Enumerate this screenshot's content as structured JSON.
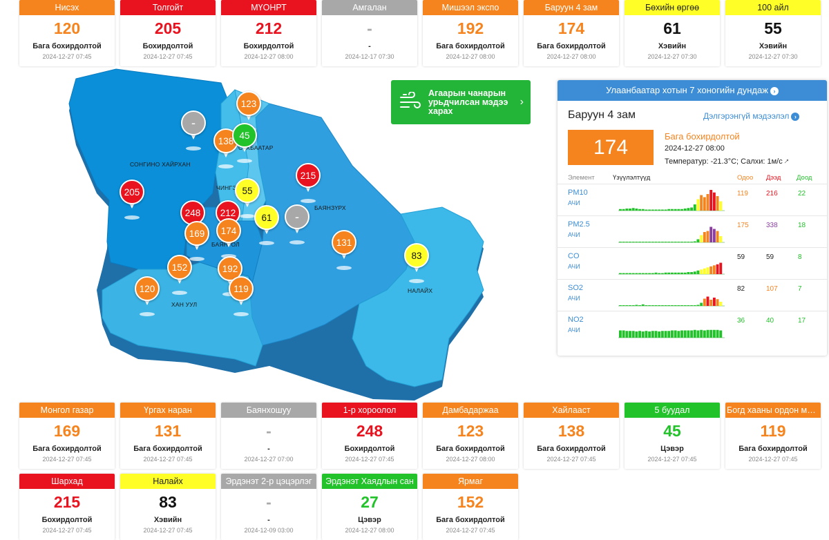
{
  "colors": {
    "green": "#22c22a",
    "yellow": "#ffff27",
    "orange": "#f5841f",
    "red": "#e8131f",
    "purple": "#8a3ea0",
    "gray": "#a8a8a8",
    "map_dark": "#0a84d6",
    "map_mid": "#2ea7e2",
    "map_light": "#3ab8e6"
  },
  "top_cards": [
    {
      "name": "Нисэх",
      "value": "120",
      "level": "Бага бохирдолтой",
      "time": "2024-12-27 07:45",
      "status": "orange"
    },
    {
      "name": "Толгойт",
      "value": "205",
      "level": "Бохирдолтой",
      "time": "2024-12-27 07:45",
      "status": "red"
    },
    {
      "name": "МҮОНРТ",
      "value": "212",
      "level": "Бохирдолтой",
      "time": "2024-12-27 08:00",
      "status": "red"
    },
    {
      "name": "Амгалан",
      "value": "-",
      "level": "-",
      "time": "2024-12-17 07:30",
      "status": "gray"
    },
    {
      "name": "Мишээл экспо",
      "value": "192",
      "level": "Бага бохирдолтой",
      "time": "2024-12-27 08:00",
      "status": "orange"
    },
    {
      "name": "Баруун 4 зам",
      "value": "174",
      "level": "Бага бохирдолтой",
      "time": "2024-12-27 08:00",
      "status": "orange"
    },
    {
      "name": "Бөхийн өргөө",
      "value": "61",
      "level": "Хэвийн",
      "time": "2024-12-27 07:30",
      "status": "yellow"
    },
    {
      "name": "100 айл",
      "value": "55",
      "level": "Хэвийн",
      "time": "2024-12-27 07:30",
      "status": "yellow"
    }
  ],
  "bottom_cards": [
    {
      "name": "Монгол газар",
      "value": "169",
      "level": "Бага бохирдолтой",
      "time": "2024-12-27 07:45",
      "status": "orange"
    },
    {
      "name": "Үргах наран",
      "value": "131",
      "level": "Бага бохирдолтой",
      "time": "2024-12-27 07:45",
      "status": "orange"
    },
    {
      "name": "Баянхошуу",
      "value": "-",
      "level": "-",
      "time": "2024-12-27 07:00",
      "status": "gray"
    },
    {
      "name": "1-р хороолол",
      "value": "248",
      "level": "Бохирдолтой",
      "time": "2024-12-27 07:45",
      "status": "red"
    },
    {
      "name": "Дамбадаржаа",
      "value": "123",
      "level": "Бага бохирдолтой",
      "time": "2024-12-27 08:00",
      "status": "orange"
    },
    {
      "name": "Хайлааст",
      "value": "138",
      "level": "Бага бохирдолтой",
      "time": "2024-12-27 07:45",
      "status": "orange"
    },
    {
      "name": "5 буудал",
      "value": "45",
      "level": "Цэвэр",
      "time": "2024-12-27 07:45",
      "status": "green"
    },
    {
      "name": "Богд хааны ордон музей",
      "value": "119",
      "level": "Бага бохирдолтой",
      "time": "2024-12-27 07:45",
      "status": "orange"
    },
    {
      "name": "Шархад",
      "value": "215",
      "level": "Бохирдолтой",
      "time": "2024-12-27 07:45",
      "status": "red"
    },
    {
      "name": "Налайх",
      "value": "83",
      "level": "Хэвийн",
      "time": "2024-12-27 07:45",
      "status": "yellow"
    },
    {
      "name": "Эрдэнэт 2-р цэцэрлэг",
      "value": "-",
      "level": "-",
      "time": "2024-12-09 03:00",
      "status": "gray"
    },
    {
      "name": "Эрдэнэт Хаядлын сан",
      "value": "27",
      "level": "Цэвэр",
      "time": "2024-12-27 08:00",
      "status": "green"
    },
    {
      "name": "Ярмаг",
      "value": "152",
      "level": "Бага бохирдолтой",
      "time": "2024-12-27 07:45",
      "status": "orange"
    }
  ],
  "map": {
    "district_labels": [
      "СОНГИНО ХАЙРХАН",
      "БАЯНГОЛ",
      "ЧИНГЭЛТЭЙ",
      "БАЯНЗҮРХ",
      "ХАН УУЛ",
      "НАЛАЙХ",
      "СҮХБААТАР"
    ],
    "markers": [
      {
        "value": "-",
        "status": "gray"
      },
      {
        "value": "123",
        "status": "orange"
      },
      {
        "value": "138",
        "status": "orange"
      },
      {
        "value": "45",
        "status": "green"
      },
      {
        "value": "215",
        "status": "red"
      },
      {
        "value": "205",
        "status": "red"
      },
      {
        "value": "55",
        "status": "yellow"
      },
      {
        "value": "248",
        "status": "red"
      },
      {
        "value": "212",
        "status": "red"
      },
      {
        "value": "169",
        "status": "orange"
      },
      {
        "value": "174",
        "status": "orange"
      },
      {
        "value": "61",
        "status": "yellow"
      },
      {
        "value": "-",
        "status": "gray"
      },
      {
        "value": "131",
        "status": "orange"
      },
      {
        "value": "83",
        "status": "yellow"
      },
      {
        "value": "152",
        "status": "orange"
      },
      {
        "value": "192",
        "status": "orange"
      },
      {
        "value": "120",
        "status": "orange"
      },
      {
        "value": "119",
        "status": "orange"
      }
    ]
  },
  "forecast_button": {
    "label": "Агаарын чанарын урьдчилсан мэдээ харах",
    "icon": "wind-icon"
  },
  "panel": {
    "title": "Улаанбаатар хотын 7 хоногийн дундаж",
    "station": "Баруун 4 зам",
    "more_link": "Дэлгэрэнгүй мэдээлэл",
    "aqi": "174",
    "level": "Бага бохирдолтой",
    "time": "2024-12-27 08:00",
    "weather": "Температур: -21.3°C; Салхи: 1м/с",
    "headers": {
      "element": "Элемент",
      "readings": "Үзүүлэлтүүд",
      "now": "Одоо",
      "max": "Дээд",
      "min": "Доод"
    },
    "rows": [
      {
        "name": "PM10",
        "unit": "АЧИ",
        "now": "119",
        "max": "216",
        "min": "22",
        "now_color": "#f5841f",
        "max_color": "#e8131f",
        "min_color": "#22c22a",
        "bars": [
          3,
          3,
          4,
          4,
          5,
          4,
          3,
          3,
          2,
          2,
          2,
          2,
          2,
          2,
          2,
          3,
          3,
          3,
          3,
          3,
          4,
          5,
          6,
          12,
          22,
          30,
          26,
          32,
          40,
          35,
          28,
          18
        ]
      },
      {
        "name": "PM2.5",
        "unit": "АЧИ",
        "now": "175",
        "max": "338",
        "min": "18",
        "now_color": "#f5841f",
        "max_color": "#8a3ea0",
        "min_color": "#22c22a",
        "bars": [
          1,
          1,
          1,
          1,
          1,
          1,
          1,
          1,
          1,
          1,
          1,
          1,
          1,
          1,
          1,
          1,
          1,
          1,
          1,
          1,
          1,
          1,
          1,
          2,
          6,
          14,
          20,
          22,
          30,
          26,
          22,
          12
        ]
      },
      {
        "name": "CO",
        "unit": "АЧИ",
        "now": "59",
        "max": "59",
        "min": "8",
        "now_color": "#222",
        "max_color": "#222",
        "min_color": "#22c22a",
        "bars": [
          2,
          2,
          2,
          2,
          2,
          2,
          2,
          2,
          2,
          2,
          2,
          3,
          2,
          2,
          3,
          3,
          3,
          3,
          3,
          3,
          3,
          4,
          4,
          5,
          7,
          9,
          11,
          13,
          15,
          17,
          19,
          22
        ]
      },
      {
        "name": "SO2",
        "unit": "АЧИ",
        "now": "82",
        "max": "107",
        "min": "7",
        "now_color": "#222",
        "max_color": "#f5841f",
        "min_color": "#22c22a",
        "bars": [
          1,
          1,
          1,
          1,
          1,
          2,
          1,
          3,
          1,
          1,
          1,
          1,
          1,
          1,
          1,
          1,
          1,
          1,
          1,
          1,
          1,
          1,
          1,
          1,
          2,
          6,
          14,
          18,
          12,
          16,
          13,
          8
        ]
      },
      {
        "name": "NO2",
        "unit": "АЧИ",
        "now": "36",
        "max": "40",
        "min": "17",
        "now_color": "#22c22a",
        "max_color": "#22c22a",
        "min_color": "#22c22a",
        "bars": [
          14,
          14,
          13,
          13,
          13,
          12,
          13,
          12,
          13,
          12,
          13,
          13,
          12,
          13,
          13,
          13,
          14,
          14,
          13,
          14,
          14,
          14,
          14,
          15,
          14,
          15,
          14,
          15,
          15,
          15,
          15,
          14
        ]
      }
    ]
  }
}
